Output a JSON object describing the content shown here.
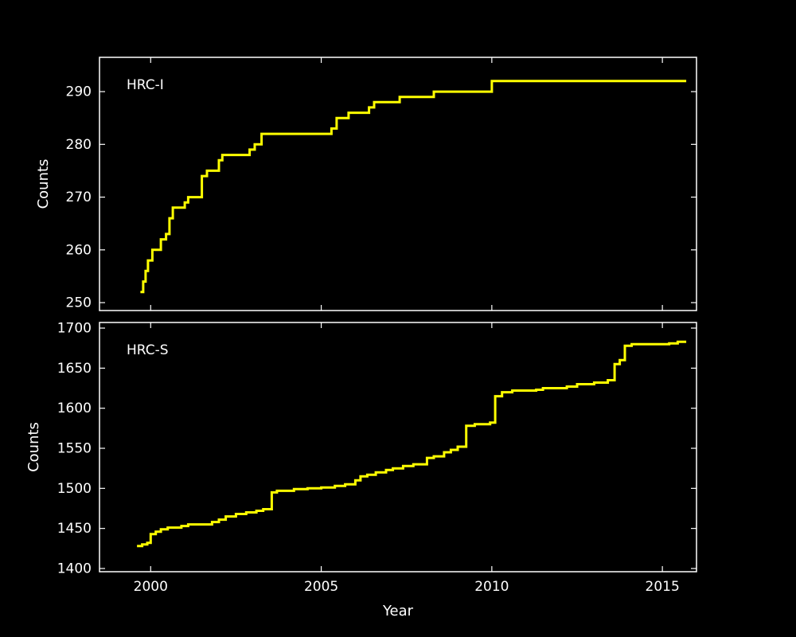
{
  "style": {
    "background": "#000000",
    "frame_color": "#ffffff",
    "text_color": "#ffffff",
    "accent": "#ffff00"
  },
  "chart_data": [
    {
      "type": "line",
      "step": "post",
      "label": "HRC-I",
      "ylabel": "Counts",
      "xlabel": "",
      "line_color": "#ffff00",
      "grid": false,
      "legend": "none",
      "xlim": [
        1998.5,
        2016.0
      ],
      "ylim": [
        248.5,
        296.5
      ],
      "xticks": [
        2000,
        2005,
        2010,
        2015
      ],
      "show_xtick_labels": false,
      "yticks": [
        250,
        260,
        270,
        280,
        290
      ],
      "x": [
        1999.7,
        1999.78,
        1999.85,
        1999.92,
        2000.05,
        2000.3,
        2000.45,
        2000.55,
        2000.65,
        2001.0,
        2001.1,
        2001.5,
        2001.65,
        2002.0,
        2002.1,
        2002.9,
        2003.05,
        2003.25,
        2005.3,
        2005.45,
        2005.8,
        2006.4,
        2006.55,
        2007.3,
        2008.3,
        2010.0,
        2015.7
      ],
      "y": [
        252,
        254,
        256,
        258,
        260,
        262,
        263,
        266,
        268,
        269,
        270,
        274,
        275,
        277,
        278,
        279,
        280,
        282,
        283,
        285,
        286,
        287,
        288,
        289,
        290,
        292,
        292
      ]
    },
    {
      "type": "line",
      "step": "post",
      "label": "HRC-S",
      "ylabel": "Counts",
      "xlabel": "Year",
      "line_color": "#ffff00",
      "grid": false,
      "legend": "none",
      "xlim": [
        1998.5,
        2016.0
      ],
      "ylim": [
        1396,
        1707
      ],
      "xticks": [
        2000,
        2005,
        2010,
        2015
      ],
      "show_xtick_labels": true,
      "yticks": [
        1400,
        1450,
        1500,
        1550,
        1600,
        1650,
        1700
      ],
      "x": [
        1999.6,
        1999.75,
        1999.9,
        2000.0,
        2000.15,
        2000.3,
        2000.5,
        2000.9,
        2001.1,
        2001.8,
        2002.0,
        2002.2,
        2002.5,
        2002.8,
        2003.1,
        2003.3,
        2003.55,
        2003.7,
        2004.2,
        2004.6,
        2005.0,
        2005.4,
        2005.7,
        2006.0,
        2006.15,
        2006.35,
        2006.6,
        2006.9,
        2007.1,
        2007.4,
        2007.7,
        2008.1,
        2008.3,
        2008.6,
        2008.8,
        2009.0,
        2009.25,
        2009.5,
        2009.95,
        2010.1,
        2010.3,
        2010.6,
        2011.3,
        2011.5,
        2012.2,
        2012.5,
        2013.0,
        2013.4,
        2013.6,
        2013.75,
        2013.9,
        2014.1,
        2015.2,
        2015.45,
        2015.7
      ],
      "y": [
        1428,
        1430,
        1432,
        1443,
        1446,
        1449,
        1451,
        1453,
        1455,
        1458,
        1461,
        1465,
        1468,
        1470,
        1472,
        1474,
        1495,
        1497,
        1499,
        1500,
        1501,
        1503,
        1505,
        1510,
        1515,
        1517,
        1520,
        1523,
        1525,
        1528,
        1530,
        1538,
        1540,
        1545,
        1548,
        1552,
        1578,
        1580,
        1582,
        1615,
        1620,
        1622,
        1623,
        1625,
        1627,
        1630,
        1632,
        1635,
        1655,
        1660,
        1678,
        1680,
        1681,
        1683,
        1683
      ]
    }
  ]
}
